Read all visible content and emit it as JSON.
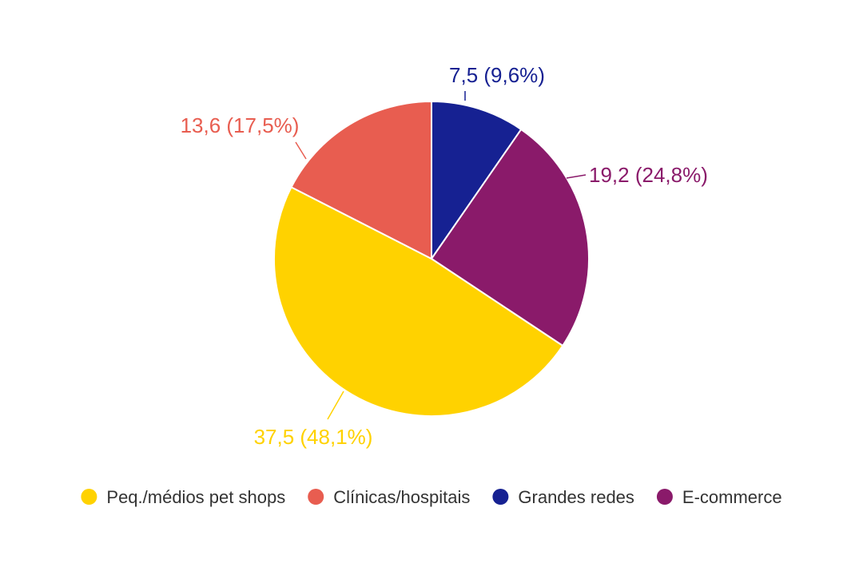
{
  "chart_data": {
    "type": "pie",
    "title": "",
    "legend_position": "bottom",
    "start_angle_deg": 0,
    "direction": "clockwise",
    "slices": [
      {
        "name": "Grandes redes",
        "value": 7.5,
        "percent": 9.6,
        "label": "7,5 (9,6%)",
        "color": "#162192"
      },
      {
        "name": "E-commerce",
        "value": 19.2,
        "percent": 24.8,
        "label": "19,2 (24,8%)",
        "color": "#8A1A6A"
      },
      {
        "name": "Peq./médios pet shops",
        "value": 37.5,
        "percent": 48.1,
        "label": "37,5 (48,1%)",
        "color": "#FFD200"
      },
      {
        "name": "Clínicas/hospitais",
        "value": 13.6,
        "percent": 17.5,
        "label": "13,6 (17,5%)",
        "color": "#E85D50"
      }
    ],
    "legend": [
      {
        "label": "Peq./médios pet shops",
        "color": "#FFD200"
      },
      {
        "label": "Clínicas/hospitais",
        "color": "#E85D50"
      },
      {
        "label": "Grandes redes",
        "color": "#162192"
      },
      {
        "label": "E-commerce",
        "color": "#8A1A6A"
      }
    ]
  }
}
